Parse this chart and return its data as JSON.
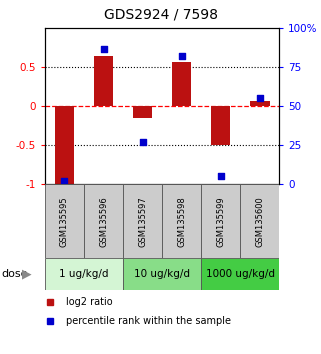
{
  "title": "GDS2924 / 7598",
  "samples": [
    "GSM135595",
    "GSM135596",
    "GSM135597",
    "GSM135598",
    "GSM135599",
    "GSM135600"
  ],
  "log2_ratios": [
    -1.0,
    0.65,
    -0.15,
    0.57,
    -0.5,
    0.07
  ],
  "percentile_ranks": [
    2,
    87,
    27,
    82,
    5,
    55
  ],
  "bar_color": "#bb1111",
  "dot_color": "#0000cc",
  "bar_width": 0.5,
  "ylim_left": [
    -1.0,
    1.0
  ],
  "ylim_right": [
    0,
    100
  ],
  "yticks_left": [
    -1,
    -0.5,
    0,
    0.5
  ],
  "ytick_labels_left": [
    "-1",
    "-0.5",
    "0",
    "0.5"
  ],
  "yticks_right": [
    0,
    25,
    50,
    75,
    100
  ],
  "ytick_labels_right": [
    "0",
    "25",
    "50",
    "75",
    "100%"
  ],
  "hlines_dotted": [
    0.5,
    -0.5
  ],
  "hline_dashed_red": 0.0,
  "dose_groups": [
    {
      "label": "1 ug/kg/d",
      "samples": [
        0,
        1
      ],
      "color": "#d4f5d4"
    },
    {
      "label": "10 ug/kg/d",
      "samples": [
        2,
        3
      ],
      "color": "#88dd88"
    },
    {
      "label": "1000 ug/kg/d",
      "samples": [
        4,
        5
      ],
      "color": "#44cc44"
    }
  ],
  "dose_label": "dose",
  "legend_entries": [
    {
      "label": "log2 ratio",
      "color": "#bb1111"
    },
    {
      "label": "percentile rank within the sample",
      "color": "#0000cc"
    }
  ],
  "sample_area_color": "#cccccc",
  "title_fontsize": 10
}
